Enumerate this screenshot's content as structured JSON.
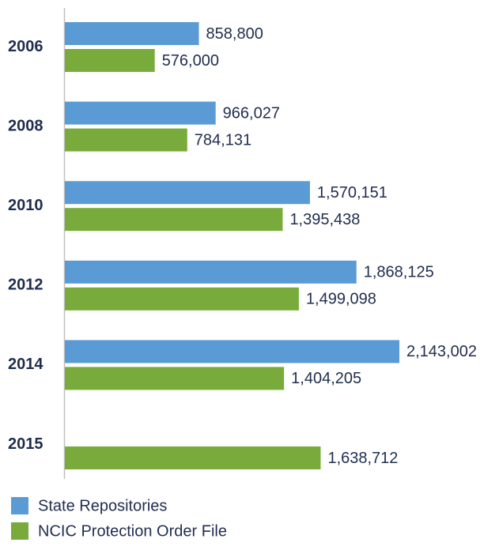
{
  "chart_data": {
    "type": "hbar",
    "categories": [
      "2006",
      "2008",
      "2010",
      "2012",
      "2014",
      "2015"
    ],
    "series": [
      {
        "name": "State Repositories",
        "color": "#5b9bd5",
        "values": [
          858800,
          966027,
          1570151,
          1868125,
          2143002,
          null
        ],
        "value_labels": [
          "858,800",
          "966,027",
          "1,570,151",
          "1,868,125",
          "2,143,002",
          null
        ]
      },
      {
        "name": "NCIC Protection Order File",
        "color": "#78ab3c",
        "values": [
          576000,
          784131,
          1395438,
          1499098,
          1404205,
          1638712
        ],
        "value_labels": [
          "576,000",
          "784,131",
          "1,395,438",
          "1,499,098",
          "1,404,205",
          "1,638,712"
        ]
      }
    ]
  }
}
